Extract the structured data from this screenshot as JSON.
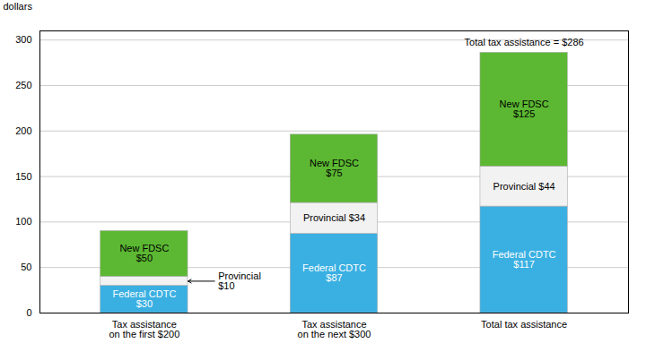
{
  "chart_data": {
    "type": "bar",
    "stacked": true,
    "categories": [
      "Tax assistance\non the first $200",
      "Tax assistance\non the next $300",
      "Total tax assistance"
    ],
    "series": [
      {
        "name": "Federal CDTC",
        "color": "#3ab0e2",
        "values": [
          30,
          87,
          117
        ],
        "value_labels": [
          "Federal CDTC\n$30",
          "Federal CDTC\n$87",
          "Federal CDTC\n$117"
        ]
      },
      {
        "name": "Provincial",
        "color": "#f2f2f2",
        "values": [
          10,
          34,
          44
        ],
        "value_labels": [
          "Provincial\n$10",
          "Provincial $34",
          "Provincial $44"
        ]
      },
      {
        "name": "New FDSC",
        "color": "#5cb832",
        "values": [
          50,
          75,
          125
        ],
        "value_labels": [
          "New FDSC\n$50",
          "New FDSC\n$75",
          "New FDSC\n$125"
        ]
      }
    ],
    "data_labels": true,
    "ylabel": "dollars",
    "ylim": [
      0,
      310
    ],
    "yticks": [
      0,
      50,
      100,
      150,
      200,
      250,
      300
    ],
    "grid": true,
    "annotations": [
      {
        "text": "Total tax assistance = $286",
        "category": "Total tax assistance"
      }
    ]
  }
}
